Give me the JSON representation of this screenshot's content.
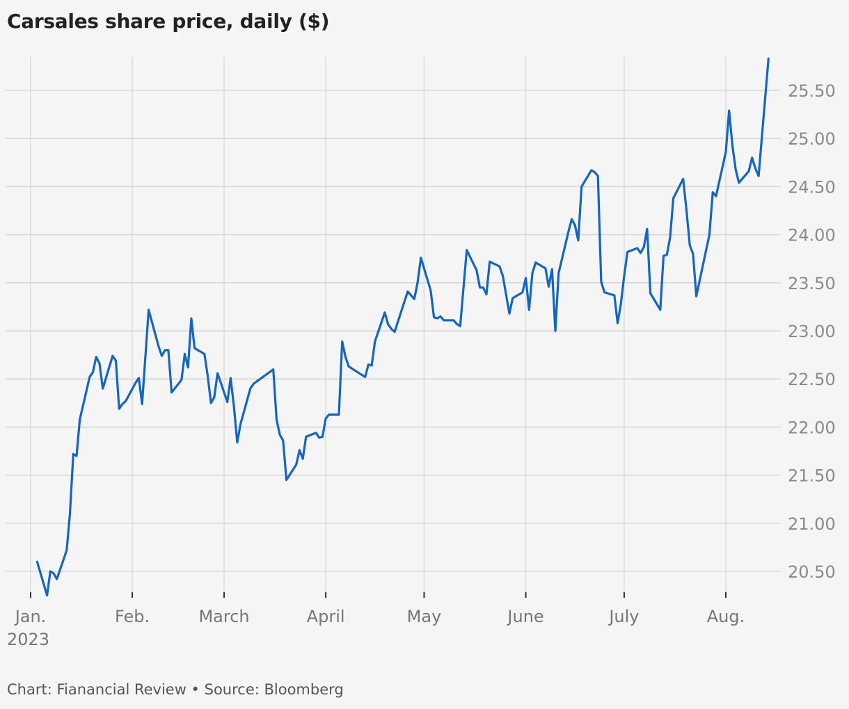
{
  "chart_data": {
    "type": "line",
    "title": "Carsales share price, daily ($)",
    "x_tick_labels": [
      "Jan.",
      "Feb.",
      "March",
      "April",
      "May",
      "June",
      "July",
      "Aug."
    ],
    "x_tick_dates": [
      "2023-01-01",
      "2023-02-01",
      "2023-03-01",
      "2023-04-01",
      "2023-05-01",
      "2023-06-01",
      "2023-07-01",
      "2023-08-01"
    ],
    "year_label": "2023",
    "y_ticks": [
      20.5,
      21.0,
      21.5,
      22.0,
      22.5,
      23.0,
      23.5,
      24.0,
      24.5,
      25.0,
      25.5
    ],
    "y_tick_labels": [
      "20.50",
      "21.00",
      "21.50",
      "22.00",
      "22.50",
      "23.00",
      "23.50",
      "24.00",
      "24.50",
      "25.00",
      "25.50"
    ],
    "ylim": [
      20.25,
      25.83
    ],
    "xlim": [
      "2023-01-01",
      "2023-08-15"
    ],
    "y_axis_position": "right",
    "grid": true,
    "line_color": "#1565c0",
    "series": [
      {
        "points": [
          [
            "2023-01-03",
            20.6
          ],
          [
            "2023-01-06",
            20.25
          ],
          [
            "2023-01-07",
            20.5
          ],
          [
            "2023-01-08",
            20.48
          ],
          [
            "2023-01-09",
            20.42
          ],
          [
            "2023-01-12",
            20.72
          ],
          [
            "2023-01-13",
            21.1
          ],
          [
            "2023-01-14",
            21.72
          ],
          [
            "2023-01-15",
            21.7
          ],
          [
            "2023-01-16",
            22.08
          ],
          [
            "2023-01-19",
            22.52
          ],
          [
            "2023-01-20",
            22.57
          ],
          [
            "2023-01-21",
            22.73
          ],
          [
            "2023-01-22",
            22.66
          ],
          [
            "2023-01-23",
            22.4
          ],
          [
            "2023-01-26",
            22.74
          ],
          [
            "2023-01-27",
            22.69
          ],
          [
            "2023-01-28",
            22.19
          ],
          [
            "2023-01-30",
            22.27
          ],
          [
            "2023-01-29",
            22.24
          ],
          [
            "2023-02-02",
            22.46
          ],
          [
            "2023-02-03",
            22.51
          ],
          [
            "2023-02-04",
            22.24
          ],
          [
            "2023-02-06",
            23.22
          ],
          [
            "2023-02-09",
            22.84
          ],
          [
            "2023-02-10",
            22.74
          ],
          [
            "2023-02-11",
            22.8
          ],
          [
            "2023-02-12",
            22.8
          ],
          [
            "2023-02-13",
            22.36
          ],
          [
            "2023-02-16",
            22.49
          ],
          [
            "2023-02-17",
            22.76
          ],
          [
            "2023-02-18",
            22.62
          ],
          [
            "2023-02-19",
            23.13
          ],
          [
            "2023-02-20",
            22.82
          ],
          [
            "2023-02-23",
            22.76
          ],
          [
            "2023-02-24",
            22.53
          ],
          [
            "2023-02-25",
            22.25
          ],
          [
            "2023-02-26",
            22.31
          ],
          [
            "2023-02-27",
            22.56
          ],
          [
            "2023-03-02",
            22.26
          ],
          [
            "2023-03-03",
            22.51
          ],
          [
            "2023-03-04",
            22.21
          ],
          [
            "2023-03-05",
            21.84
          ],
          [
            "2023-03-06",
            22.03
          ],
          [
            "2023-03-09",
            22.4
          ],
          [
            "2023-03-10",
            22.45
          ],
          [
            "2023-03-16",
            22.6
          ],
          [
            "2023-03-17",
            22.08
          ],
          [
            "2023-03-18",
            21.92
          ],
          [
            "2023-03-19",
            21.86
          ],
          [
            "2023-03-20",
            21.45
          ],
          [
            "2023-03-23",
            21.61
          ],
          [
            "2023-03-24",
            21.76
          ],
          [
            "2023-03-25",
            21.67
          ],
          [
            "2023-03-26",
            21.9
          ],
          [
            "2023-03-29",
            21.94
          ],
          [
            "2023-03-30",
            21.89
          ],
          [
            "2023-03-31",
            21.9
          ],
          [
            "2023-04-01",
            22.09
          ],
          [
            "2023-04-02",
            22.13
          ],
          [
            "2023-04-05",
            22.13
          ],
          [
            "2023-04-06",
            22.89
          ],
          [
            "2023-04-07",
            22.73
          ],
          [
            "2023-04-08",
            22.63
          ],
          [
            "2023-04-13",
            22.52
          ],
          [
            "2023-04-14",
            22.65
          ],
          [
            "2023-04-15",
            22.64
          ],
          [
            "2023-04-16",
            22.89
          ],
          [
            "2023-04-19",
            23.19
          ],
          [
            "2023-04-20",
            23.07
          ],
          [
            "2023-04-21",
            23.02
          ],
          [
            "2023-04-22",
            22.99
          ],
          [
            "2023-04-26",
            23.41
          ],
          [
            "2023-04-27",
            23.37
          ],
          [
            "2023-04-28",
            23.33
          ],
          [
            "2023-04-29",
            23.5
          ],
          [
            "2023-04-30",
            23.76
          ],
          [
            "2023-05-03",
            23.42
          ],
          [
            "2023-05-04",
            23.14
          ],
          [
            "2023-05-05",
            23.13
          ],
          [
            "2023-05-06",
            23.15
          ],
          [
            "2023-05-07",
            23.11
          ],
          [
            "2023-05-10",
            23.11
          ],
          [
            "2023-05-11",
            23.07
          ],
          [
            "2023-05-12",
            23.05
          ],
          [
            "2023-05-14",
            23.84
          ],
          [
            "2023-05-17",
            23.63
          ],
          [
            "2023-05-18",
            23.45
          ],
          [
            "2023-05-19",
            23.45
          ],
          [
            "2023-05-20",
            23.38
          ],
          [
            "2023-05-21",
            23.72
          ],
          [
            "2023-05-24",
            23.67
          ],
          [
            "2023-05-25",
            23.57
          ],
          [
            "2023-05-27",
            23.18
          ],
          [
            "2023-05-28",
            23.34
          ],
          [
            "2023-05-31",
            23.4
          ],
          [
            "2023-06-01",
            23.55
          ],
          [
            "2023-06-02",
            23.22
          ],
          [
            "2023-06-03",
            23.6
          ],
          [
            "2023-06-04",
            23.71
          ],
          [
            "2023-06-07",
            23.65
          ],
          [
            "2023-06-08",
            23.46
          ],
          [
            "2023-06-09",
            23.64
          ],
          [
            "2023-06-10",
            23.0
          ],
          [
            "2023-06-11",
            23.6
          ],
          [
            "2023-06-14",
            24.03
          ],
          [
            "2023-06-15",
            24.16
          ],
          [
            "2023-06-16",
            24.1
          ],
          [
            "2023-06-17",
            23.94
          ],
          [
            "2023-06-18",
            24.5
          ],
          [
            "2023-06-21",
            24.67
          ],
          [
            "2023-06-22",
            24.65
          ],
          [
            "2023-06-23",
            24.61
          ],
          [
            "2023-06-24",
            23.51
          ],
          [
            "2023-06-25",
            23.4
          ],
          [
            "2023-06-28",
            23.37
          ],
          [
            "2023-06-29",
            23.08
          ],
          [
            "2023-06-30",
            23.28
          ],
          [
            "2023-07-01",
            23.57
          ],
          [
            "2023-07-02",
            23.82
          ],
          [
            "2023-07-05",
            23.86
          ],
          [
            "2023-07-06",
            23.81
          ],
          [
            "2023-07-07",
            23.87
          ],
          [
            "2023-07-08",
            24.06
          ],
          [
            "2023-07-09",
            23.39
          ],
          [
            "2023-07-12",
            23.22
          ],
          [
            "2023-07-13",
            23.78
          ],
          [
            "2023-07-14",
            23.79
          ],
          [
            "2023-07-15",
            23.97
          ],
          [
            "2023-07-16",
            24.38
          ],
          [
            "2023-07-19",
            24.58
          ],
          [
            "2023-07-20",
            24.25
          ],
          [
            "2023-07-21",
            23.89
          ],
          [
            "2023-07-22",
            23.8
          ],
          [
            "2023-07-23",
            23.36
          ],
          [
            "2023-07-26",
            23.84
          ],
          [
            "2023-07-27",
            24.0
          ],
          [
            "2023-07-28",
            24.44
          ],
          [
            "2023-07-29",
            24.4
          ],
          [
            "2023-08-01",
            24.86
          ],
          [
            "2023-08-02",
            25.29
          ],
          [
            "2023-08-03",
            24.93
          ],
          [
            "2023-08-04",
            24.68
          ],
          [
            "2023-08-05",
            24.54
          ],
          [
            "2023-08-08",
            24.66
          ],
          [
            "2023-08-09",
            24.8
          ],
          [
            "2023-08-10",
            24.69
          ],
          [
            "2023-08-11",
            24.61
          ],
          [
            "2023-08-14",
            25.83
          ]
        ]
      }
    ]
  },
  "footer": "Chart: Fianancial Review • Source: Bloomberg"
}
